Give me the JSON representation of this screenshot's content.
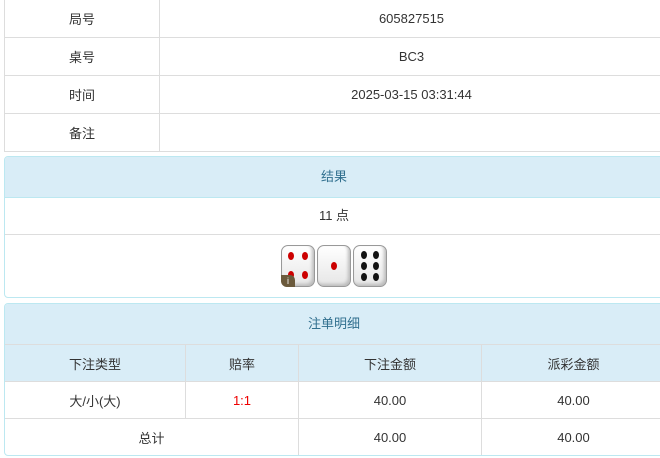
{
  "info": [
    {
      "label": "局号",
      "value": "605827515"
    },
    {
      "label": "桌号",
      "value": "BC3"
    },
    {
      "label": "时间",
      "value": "2025-03-15 03:31:44"
    },
    {
      "label": "备注",
      "value": ""
    }
  ],
  "result": {
    "title": "结果",
    "points": "11 点",
    "dice": [
      4,
      1,
      6
    ],
    "dice_colors": {
      "red": "#cc0000",
      "black": "#111111"
    },
    "badge": "i"
  },
  "bets": {
    "title": "注单明细",
    "headers": [
      "下注类型",
      "赔率",
      "下注金额",
      "派彩金额"
    ],
    "rows": [
      [
        "大/小(大)",
        "1:1",
        "40.00",
        "40.00"
      ]
    ],
    "total": {
      "label": "总计",
      "bet": "40.00",
      "payout": "40.00"
    }
  },
  "colors": {
    "header_bg": "#d9edf7",
    "header_text": "#31708f",
    "odds": "#ee0000"
  }
}
